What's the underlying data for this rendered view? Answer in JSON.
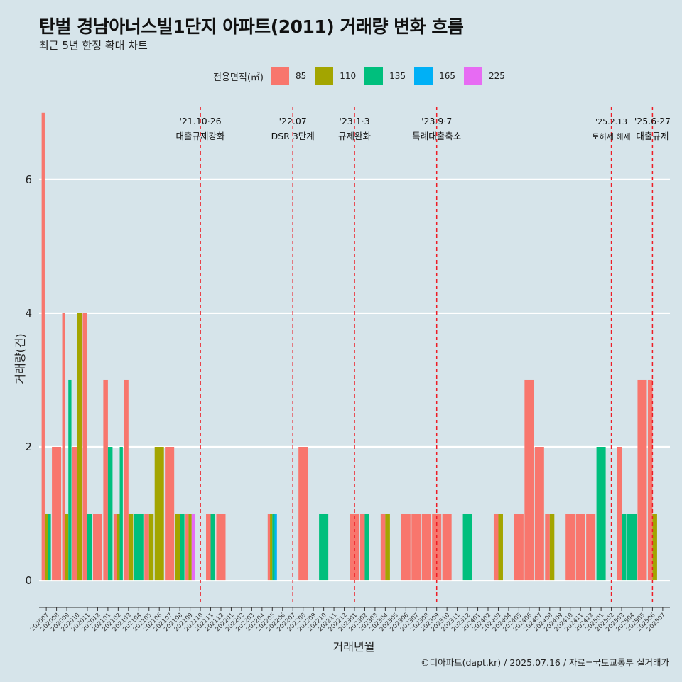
{
  "title": "탄벌 경남아너스빌1단지 아파트(2011) 거래량 변화 흐름",
  "subtitle": "최근 5년 한정 확대 차트",
  "caption": "©디아파트(dapt.kr) / 2025.07.16 / 자료=국토교통부 실거래가",
  "legend": {
    "title": "전용면적(㎡)",
    "items": [
      {
        "label": "85",
        "color": "#f8766d"
      },
      {
        "label": "110",
        "color": "#a3a500"
      },
      {
        "label": "135",
        "color": "#00bf7d"
      },
      {
        "label": "165",
        "color": "#00b0f6"
      },
      {
        "label": "225",
        "color": "#e76bf3"
      }
    ]
  },
  "chart_data": {
    "type": "bar",
    "title": "탄벌 경남아너스빌1단지 아파트(2011) 거래량 변화 흐름",
    "subtitle": "최근 5년 한정 확대 차트",
    "xlabel": "거래년월",
    "ylabel": "거래량(건)",
    "ylim": [
      -0.35,
      7.2
    ],
    "yticks": [
      0,
      2,
      4,
      6
    ],
    "grid": true,
    "legend_position": "top",
    "categories": [
      "202007",
      "202008",
      "202009",
      "202010",
      "202011",
      "202012",
      "202101",
      "202102",
      "202103",
      "202104",
      "202105",
      "202106",
      "202107",
      "202108",
      "202109",
      "202110",
      "202111",
      "202112",
      "202201",
      "202202",
      "202203",
      "202204",
      "202205",
      "202206",
      "202207",
      "202208",
      "202209",
      "202210",
      "202211",
      "202212",
      "202301",
      "202302",
      "202303",
      "202304",
      "202305",
      "202306",
      "202307",
      "202308",
      "202309",
      "202310",
      "202311",
      "202312",
      "202401",
      "202402",
      "202403",
      "202404",
      "202405",
      "202406",
      "202407",
      "202408",
      "202409",
      "202410",
      "202411",
      "202412",
      "202501",
      "202502",
      "202503",
      "202504",
      "202505",
      "202506",
      "202507"
    ],
    "tick_labels": [
      "202007",
      "202008",
      "202009",
      "202010",
      "202011",
      "202012",
      "202101",
      "202102",
      "202103",
      "202104",
      "202105",
      "202106",
      "202107",
      "202108",
      "202109",
      "202110",
      "202111",
      "202112",
      "202201",
      "202202",
      "202203",
      "202204",
      "202205",
      "202206",
      "202207",
      "202208",
      "202209",
      "202210",
      "202211",
      "202212",
      "202301",
      "202302",
      "202303",
      "202304",
      "202305",
      "202306",
      "202307",
      "202308",
      "202309",
      "202310",
      "202311",
      "202312",
      "202401",
      "202402",
      "202403",
      "202404",
      "202405",
      "202406",
      "202407",
      "202408",
      "202409",
      "202410",
      "202411",
      "202412",
      "202501",
      "202502",
      "202503",
      "202504",
      "202505",
      "202506",
      "202507"
    ],
    "series": [
      {
        "name": "85",
        "color": "#f8766d",
        "values": [
          7,
          2,
          4,
          2,
          4,
          1,
          3,
          1,
          3,
          0,
          1,
          0,
          2,
          0,
          1,
          0,
          1,
          1,
          0,
          0,
          0,
          0,
          1,
          0,
          0,
          2,
          0,
          0,
          0,
          0,
          1,
          1,
          0,
          1,
          0,
          1,
          1,
          1,
          1,
          1,
          0,
          0,
          0,
          0,
          1,
          0,
          1,
          3,
          2,
          1,
          0,
          1,
          1,
          1,
          0,
          0,
          2,
          0,
          3,
          3,
          0
        ]
      },
      {
        "name": "110",
        "color": "#a3a500",
        "values": [
          1,
          0,
          1,
          4,
          0,
          0,
          0,
          1,
          1,
          0,
          1,
          2,
          0,
          1,
          1,
          0,
          0,
          0,
          0,
          0,
          0,
          0,
          1,
          0,
          0,
          0,
          0,
          0,
          0,
          0,
          0,
          0,
          0,
          1,
          0,
          0,
          0,
          0,
          0,
          0,
          0,
          0,
          0,
          0,
          1,
          0,
          0,
          0,
          0,
          1,
          0,
          0,
          0,
          0,
          0,
          0,
          0,
          0,
          0,
          1,
          0
        ]
      },
      {
        "name": "135",
        "color": "#00bf7d",
        "values": [
          1,
          0,
          3,
          0,
          1,
          0,
          2,
          2,
          0,
          1,
          0,
          0,
          0,
          1,
          0,
          0,
          1,
          0,
          0,
          0,
          0,
          0,
          1,
          0,
          0,
          0,
          0,
          1,
          0,
          0,
          0,
          1,
          0,
          0,
          0,
          0,
          0,
          0,
          0,
          0,
          0,
          1,
          0,
          0,
          0,
          0,
          0,
          0,
          0,
          0,
          0,
          0,
          0,
          0,
          2,
          0,
          1,
          1,
          0,
          0,
          0
        ]
      },
      {
        "name": "165",
        "color": "#00b0f6",
        "values": [
          0,
          0,
          0,
          0,
          0,
          0,
          0,
          0,
          0,
          0,
          0,
          0,
          0,
          0,
          0,
          0,
          0,
          0,
          0,
          0,
          0,
          0,
          1,
          0,
          0,
          0,
          0,
          0,
          0,
          0,
          0,
          0,
          0,
          0,
          0,
          0,
          0,
          0,
          0,
          0,
          0,
          0,
          0,
          0,
          0,
          0,
          0,
          0,
          0,
          0,
          0,
          0,
          0,
          0,
          0,
          0,
          0,
          0,
          0,
          0,
          0
        ]
      },
      {
        "name": "225",
        "color": "#e76bf3",
        "values": [
          0,
          0,
          0,
          0,
          0,
          0,
          0,
          0,
          0,
          0,
          0,
          0,
          0,
          0,
          1,
          0,
          0,
          0,
          0,
          0,
          0,
          0,
          0,
          0,
          0,
          0,
          0,
          0,
          0,
          0,
          0,
          0,
          0,
          0,
          0,
          0,
          0,
          0,
          0,
          0,
          0,
          0,
          0,
          0,
          0,
          0,
          0,
          0,
          0,
          0,
          0,
          0,
          0,
          0,
          0,
          0,
          0,
          0,
          0,
          0,
          0
        ]
      }
    ],
    "annotations": [
      {
        "x": 15.5,
        "date": "'21.10·26",
        "label": "대출규제강화"
      },
      {
        "x": 24.5,
        "date": "'22.07",
        "label": "DSR 3단계"
      },
      {
        "x": 30.5,
        "date": "'23.1·3",
        "label": "규제완화"
      },
      {
        "x": 38.5,
        "date": "'23.9·7",
        "label": "특례대출축소"
      },
      {
        "x": 55.5,
        "date": "'25.2.13",
        "label": "토허제 해제"
      },
      {
        "x": 59.5,
        "date": "'25.6·27",
        "label": "대출규제"
      }
    ]
  }
}
